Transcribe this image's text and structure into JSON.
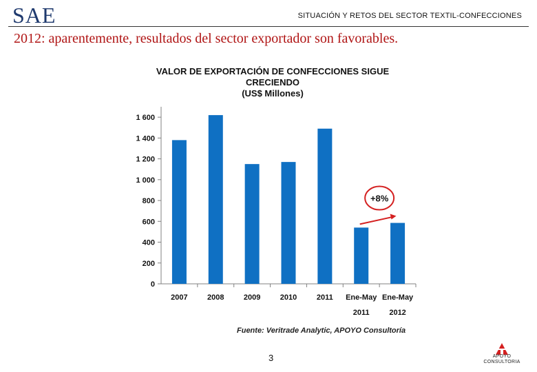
{
  "header": {
    "brand": "SAE",
    "section": "SITUACIÓN Y RETOS DEL SECTOR TEXTIL-CONFECCIONES",
    "headline": "2012: aparentemente, resultados del sector exportador son favorables."
  },
  "chart_data": {
    "type": "bar",
    "title_lines": [
      "VALOR DE EXPORTACIÓN DE CONFECCIONES  SIGUE",
      "CRECIENDO",
      "(US$ Millones)"
    ],
    "categories": [
      {
        "line1": "2007",
        "line2": ""
      },
      {
        "line1": "2008",
        "line2": ""
      },
      {
        "line1": "2009",
        "line2": ""
      },
      {
        "line1": "2010",
        "line2": ""
      },
      {
        "line1": "2011",
        "line2": ""
      },
      {
        "line1": "Ene-May",
        "line2": "2011"
      },
      {
        "line1": "Ene-May",
        "line2": "2012"
      }
    ],
    "values": [
      1380,
      1620,
      1150,
      1170,
      1490,
      540,
      585
    ],
    "yticks": [
      0,
      200,
      400,
      600,
      800,
      1000,
      1200,
      1400,
      1600
    ],
    "ytick_labels": [
      "0",
      "200",
      "400",
      "600",
      "800",
      "1 000",
      "1 200",
      "1 400",
      "1 600"
    ],
    "ylim": [
      0,
      1700
    ],
    "bar_color": "#0f70c3",
    "annotation": {
      "text": "+8%",
      "color": "#d42020"
    },
    "source": "Fuente: Veritrade Analytic, APOYO Consultoría",
    "grid": false
  },
  "footer": {
    "page_number": "3",
    "logo_line1": "APOYO",
    "logo_line2": "CONSULTORIA",
    "logo_color": "#d42020"
  }
}
